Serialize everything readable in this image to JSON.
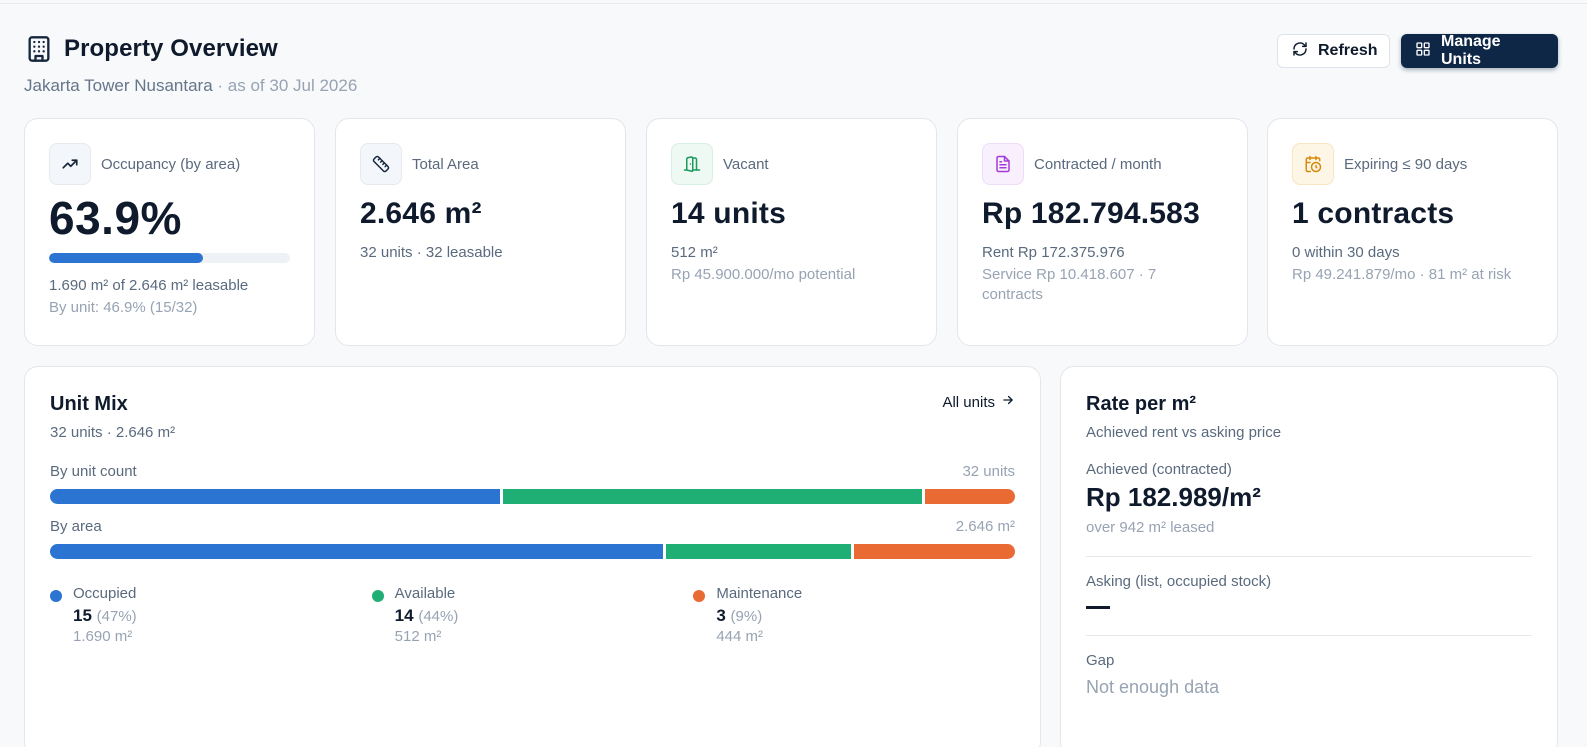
{
  "header": {
    "title": "Property Overview",
    "property_name": "Jakarta Tower Nusantara",
    "as_of": "· as of 30 Jul 2026",
    "refresh_label": "Refresh",
    "manage_label": "Manage Units"
  },
  "stats": {
    "occupancy": {
      "label": "Occupancy (by area)",
      "value": "63.9%",
      "progress_percent": 63.9,
      "line1": "1.690 m² of 2.646 m² leasable",
      "line2": "By unit: 46.9% (15/32)"
    },
    "total_area": {
      "label": "Total Area",
      "value": "2.646 m²",
      "line1": "32 units · 32 leasable"
    },
    "vacant": {
      "label": "Vacant",
      "value": "14 units",
      "line1": "512 m²",
      "line2": "Rp 45.900.000/mo potential"
    },
    "contracted": {
      "label": "Contracted / month",
      "value": "Rp 182.794.583",
      "line1": "Rent Rp 172.375.976",
      "line2": "Service Rp 10.418.607 · 7 contracts"
    },
    "expiring": {
      "label": "Expiring ≤ 90 days",
      "value": "1 contracts",
      "line1": "0 within 30 days",
      "line2": "Rp 49.241.879/mo · 81 m² at risk"
    }
  },
  "unit_mix": {
    "title": "Unit Mix",
    "subtitle": "32 units · 2.646 m²",
    "all_units_label": "All units",
    "by_count_label": "By unit count",
    "by_count_total": "32 units",
    "by_area_label": "By area",
    "by_area_total": "2.646 m²",
    "segments_count": [
      15,
      14,
      3
    ],
    "segments_area": [
      1690,
      512,
      444
    ],
    "colors": {
      "occupied": "#2c74d1",
      "available": "#1fae74",
      "maintenance": "#ea6a33"
    },
    "legend": [
      {
        "name": "Occupied",
        "count": "15",
        "pct": "(47%)",
        "area": "1.690 m²"
      },
      {
        "name": "Available",
        "count": "14",
        "pct": "(44%)",
        "area": "512 m²"
      },
      {
        "name": "Maintenance",
        "count": "3",
        "pct": "(9%)",
        "area": "444 m²"
      }
    ]
  },
  "rate": {
    "title": "Rate per m²",
    "subtitle": "Achieved rent vs asking price",
    "achieved_label": "Achieved (contracted)",
    "achieved_value": "Rp 182.989/m²",
    "achieved_note": "over 942 m² leased",
    "asking_label": "Asking (list, occupied stock)",
    "gap_label": "Gap",
    "gap_value": "Not enough data"
  }
}
